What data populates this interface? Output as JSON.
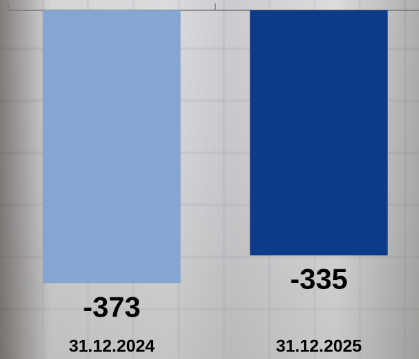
{
  "chart_data": {
    "type": "bar",
    "categories": [
      "31.12.2024",
      "31.12.2025"
    ],
    "values": [
      -373,
      -335
    ],
    "colors": [
      "#84a6d0",
      "#0e3a8a"
    ],
    "ylim": [
      -400,
      0
    ]
  }
}
